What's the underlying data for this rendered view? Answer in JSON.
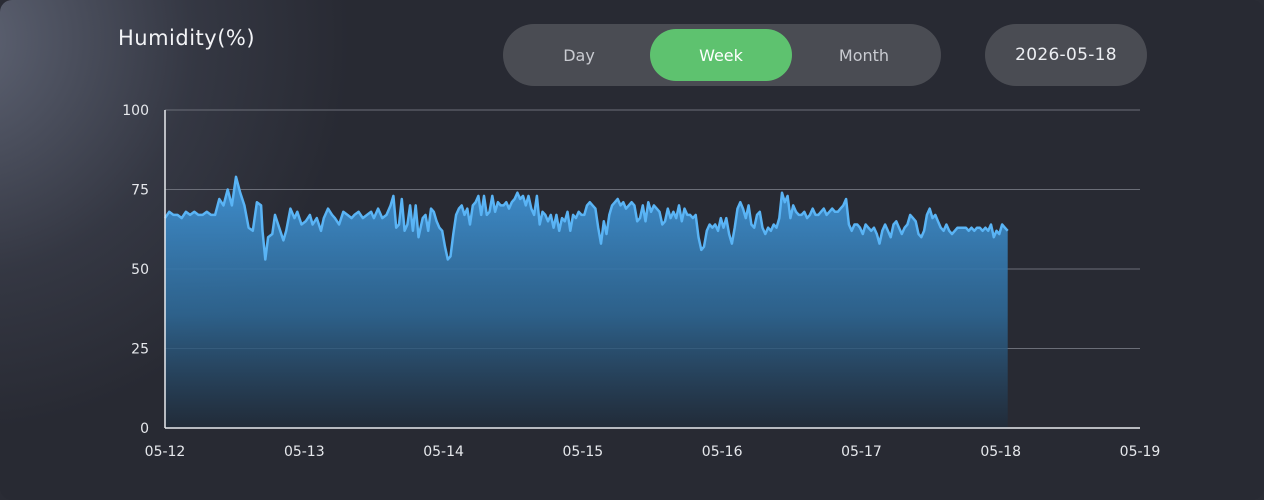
{
  "header": {
    "title": "Humidity(%)",
    "tabs": [
      {
        "label": "Day",
        "active": false
      },
      {
        "label": "Week",
        "active": true
      },
      {
        "label": "Month",
        "active": false
      }
    ],
    "date": "2026-05-18"
  },
  "colors": {
    "accent": "#5ec26f",
    "line": "#5ab4f5",
    "area_top": "#3f8fcf",
    "grid": "#6b6e78"
  },
  "chart_data": {
    "type": "area",
    "title": "Humidity(%)",
    "xlabel": "",
    "ylabel": "",
    "ylim": [
      0,
      100
    ],
    "yticks": [
      0,
      25,
      50,
      75,
      100
    ],
    "xlim": [
      "05-12",
      "05-19"
    ],
    "xticks": [
      "05-12",
      "05-13",
      "05-14",
      "05-15",
      "05-16",
      "05-17",
      "05-18",
      "05-19"
    ],
    "grid": true,
    "series": [
      {
        "x_unit": "days since 05-12 00:00",
        "points": [
          [
            0.0,
            66
          ],
          [
            0.03,
            68
          ],
          [
            0.06,
            67
          ],
          [
            0.09,
            67
          ],
          [
            0.12,
            66
          ],
          [
            0.15,
            68
          ],
          [
            0.18,
            67
          ],
          [
            0.21,
            68
          ],
          [
            0.24,
            67
          ],
          [
            0.27,
            67
          ],
          [
            0.3,
            68
          ],
          [
            0.33,
            67
          ],
          [
            0.36,
            67
          ],
          [
            0.39,
            72
          ],
          [
            0.42,
            70
          ],
          [
            0.45,
            75
          ],
          [
            0.48,
            70
          ],
          [
            0.51,
            79
          ],
          [
            0.54,
            74
          ],
          [
            0.57,
            70
          ],
          [
            0.6,
            63
          ],
          [
            0.63,
            62
          ],
          [
            0.66,
            71
          ],
          [
            0.69,
            70
          ],
          [
            0.7,
            62
          ],
          [
            0.72,
            53
          ],
          [
            0.74,
            60
          ],
          [
            0.77,
            61
          ],
          [
            0.79,
            67
          ],
          [
            0.82,
            63
          ],
          [
            0.85,
            59
          ],
          [
            0.87,
            62
          ],
          [
            0.9,
            69
          ],
          [
            0.93,
            66
          ],
          [
            0.95,
            68
          ],
          [
            0.98,
            64
          ],
          [
            1.01,
            65
          ],
          [
            1.04,
            67
          ],
          [
            1.06,
            64
          ],
          [
            1.09,
            66
          ],
          [
            1.12,
            62
          ],
          [
            1.14,
            66
          ],
          [
            1.17,
            69
          ],
          [
            1.2,
            67
          ],
          [
            1.22,
            66
          ],
          [
            1.25,
            64
          ],
          [
            1.28,
            68
          ],
          [
            1.31,
            67
          ],
          [
            1.34,
            66
          ],
          [
            1.36,
            67
          ],
          [
            1.39,
            68
          ],
          [
            1.42,
            66
          ],
          [
            1.45,
            67
          ],
          [
            1.48,
            68
          ],
          [
            1.5,
            66
          ],
          [
            1.53,
            69
          ],
          [
            1.56,
            66
          ],
          [
            1.59,
            67
          ],
          [
            1.62,
            70
          ],
          [
            1.64,
            73
          ],
          [
            1.66,
            63
          ],
          [
            1.68,
            64
          ],
          [
            1.7,
            72
          ],
          [
            1.72,
            62
          ],
          [
            1.74,
            64
          ],
          [
            1.76,
            70
          ],
          [
            1.78,
            62
          ],
          [
            1.8,
            70
          ],
          [
            1.82,
            60
          ],
          [
            1.85,
            66
          ],
          [
            1.87,
            67
          ],
          [
            1.89,
            62
          ],
          [
            1.91,
            69
          ],
          [
            1.93,
            68
          ],
          [
            1.95,
            65
          ],
          [
            1.97,
            63
          ],
          [
            1.99,
            62
          ],
          [
            2.01,
            57
          ],
          [
            2.03,
            53
          ],
          [
            2.05,
            54
          ],
          [
            2.07,
            61
          ],
          [
            2.09,
            67
          ],
          [
            2.11,
            69
          ],
          [
            2.13,
            70
          ],
          [
            2.15,
            67
          ],
          [
            2.17,
            69
          ],
          [
            2.19,
            64
          ],
          [
            2.21,
            70
          ],
          [
            2.23,
            71
          ],
          [
            2.25,
            73
          ],
          [
            2.27,
            67
          ],
          [
            2.29,
            73
          ],
          [
            2.31,
            67
          ],
          [
            2.33,
            68
          ],
          [
            2.35,
            73
          ],
          [
            2.37,
            68
          ],
          [
            2.39,
            71
          ],
          [
            2.41,
            70
          ],
          [
            2.43,
            70
          ],
          [
            2.45,
            71
          ],
          [
            2.47,
            69
          ],
          [
            2.49,
            71
          ],
          [
            2.51,
            72
          ],
          [
            2.53,
            74
          ],
          [
            2.55,
            72
          ],
          [
            2.57,
            73
          ],
          [
            2.59,
            70
          ],
          [
            2.61,
            73
          ],
          [
            2.63,
            69
          ],
          [
            2.65,
            67
          ],
          [
            2.67,
            73
          ],
          [
            2.69,
            64
          ],
          [
            2.71,
            68
          ],
          [
            2.73,
            67
          ],
          [
            2.75,
            65
          ],
          [
            2.77,
            67
          ],
          [
            2.79,
            63
          ],
          [
            2.81,
            67
          ],
          [
            2.83,
            62
          ],
          [
            2.85,
            66
          ],
          [
            2.87,
            65
          ],
          [
            2.89,
            68
          ],
          [
            2.91,
            62
          ],
          [
            2.93,
            67
          ],
          [
            2.95,
            66
          ],
          [
            2.97,
            68
          ],
          [
            2.99,
            67
          ],
          [
            3.01,
            67
          ],
          [
            3.03,
            70
          ],
          [
            3.05,
            71
          ],
          [
            3.07,
            70
          ],
          [
            3.09,
            69
          ],
          [
            3.11,
            63
          ],
          [
            3.13,
            58
          ],
          [
            3.15,
            65
          ],
          [
            3.17,
            61
          ],
          [
            3.19,
            67
          ],
          [
            3.21,
            70
          ],
          [
            3.23,
            71
          ],
          [
            3.25,
            72
          ],
          [
            3.27,
            70
          ],
          [
            3.29,
            71
          ],
          [
            3.31,
            69
          ],
          [
            3.33,
            70
          ],
          [
            3.35,
            71
          ],
          [
            3.37,
            70
          ],
          [
            3.39,
            65
          ],
          [
            3.41,
            66
          ],
          [
            3.43,
            70
          ],
          [
            3.45,
            65
          ],
          [
            3.47,
            71
          ],
          [
            3.49,
            68
          ],
          [
            3.51,
            70
          ],
          [
            3.53,
            69
          ],
          [
            3.55,
            68
          ],
          [
            3.57,
            64
          ],
          [
            3.59,
            65
          ],
          [
            3.61,
            69
          ],
          [
            3.63,
            66
          ],
          [
            3.65,
            68
          ],
          [
            3.67,
            66
          ],
          [
            3.69,
            70
          ],
          [
            3.71,
            65
          ],
          [
            3.73,
            69
          ],
          [
            3.75,
            67
          ],
          [
            3.77,
            67
          ],
          [
            3.79,
            66
          ],
          [
            3.81,
            67
          ],
          [
            3.83,
            60
          ],
          [
            3.85,
            56
          ],
          [
            3.87,
            57
          ],
          [
            3.89,
            62
          ],
          [
            3.91,
            64
          ],
          [
            3.93,
            63
          ],
          [
            3.95,
            64
          ],
          [
            3.97,
            62
          ],
          [
            3.99,
            66
          ],
          [
            4.01,
            63
          ],
          [
            4.03,
            66
          ],
          [
            4.05,
            61
          ],
          [
            4.07,
            58
          ],
          [
            4.09,
            63
          ],
          [
            4.11,
            69
          ],
          [
            4.13,
            71
          ],
          [
            4.15,
            69
          ],
          [
            4.17,
            66
          ],
          [
            4.19,
            70
          ],
          [
            4.21,
            64
          ],
          [
            4.23,
            63
          ],
          [
            4.25,
            67
          ],
          [
            4.27,
            68
          ],
          [
            4.29,
            63
          ],
          [
            4.31,
            61
          ],
          [
            4.33,
            63
          ],
          [
            4.35,
            62
          ],
          [
            4.37,
            64
          ],
          [
            4.39,
            63
          ],
          [
            4.41,
            66
          ],
          [
            4.43,
            74
          ],
          [
            4.45,
            71
          ],
          [
            4.47,
            73
          ],
          [
            4.49,
            66
          ],
          [
            4.51,
            70
          ],
          [
            4.53,
            68
          ],
          [
            4.55,
            67
          ],
          [
            4.57,
            67
          ],
          [
            4.59,
            68
          ],
          [
            4.61,
            66
          ],
          [
            4.63,
            67
          ],
          [
            4.65,
            69
          ],
          [
            4.67,
            67
          ],
          [
            4.69,
            67
          ],
          [
            4.71,
            68
          ],
          [
            4.73,
            69
          ],
          [
            4.75,
            67
          ],
          [
            4.77,
            68
          ],
          [
            4.79,
            69
          ],
          [
            4.81,
            68
          ],
          [
            4.83,
            68
          ],
          [
            4.85,
            69
          ],
          [
            4.87,
            70
          ],
          [
            4.89,
            72
          ],
          [
            4.91,
            64
          ],
          [
            4.93,
            62
          ],
          [
            4.95,
            64
          ],
          [
            4.97,
            64
          ],
          [
            4.99,
            63
          ],
          [
            5.01,
            61
          ],
          [
            5.03,
            64
          ],
          [
            5.05,
            63
          ],
          [
            5.07,
            62
          ],
          [
            5.09,
            63
          ],
          [
            5.11,
            61
          ],
          [
            5.13,
            58
          ],
          [
            5.15,
            62
          ],
          [
            5.17,
            64
          ],
          [
            5.19,
            62
          ],
          [
            5.21,
            60
          ],
          [
            5.23,
            64
          ],
          [
            5.25,
            65
          ],
          [
            5.27,
            63
          ],
          [
            5.29,
            61
          ],
          [
            5.31,
            63
          ],
          [
            5.33,
            64
          ],
          [
            5.35,
            67
          ],
          [
            5.37,
            66
          ],
          [
            5.39,
            65
          ],
          [
            5.41,
            61
          ],
          [
            5.43,
            60
          ],
          [
            5.45,
            62
          ],
          [
            5.47,
            67
          ],
          [
            5.49,
            69
          ],
          [
            5.51,
            66
          ],
          [
            5.53,
            67
          ],
          [
            5.55,
            65
          ],
          [
            5.57,
            63
          ],
          [
            5.59,
            62
          ],
          [
            5.61,
            64
          ],
          [
            5.63,
            62
          ],
          [
            5.65,
            61
          ],
          [
            5.67,
            62
          ],
          [
            5.69,
            63
          ],
          [
            5.71,
            63
          ],
          [
            5.73,
            63
          ],
          [
            5.75,
            63
          ],
          [
            5.77,
            62
          ],
          [
            5.79,
            63
          ],
          [
            5.81,
            62
          ],
          [
            5.83,
            63
          ],
          [
            5.85,
            63
          ],
          [
            5.87,
            62
          ],
          [
            5.89,
            63
          ],
          [
            5.91,
            62
          ],
          [
            5.93,
            64
          ],
          [
            5.95,
            60
          ],
          [
            5.97,
            62
          ],
          [
            5.99,
            61
          ],
          [
            6.01,
            64
          ],
          [
            6.03,
            63
          ],
          [
            6.05,
            62
          ]
        ]
      }
    ]
  }
}
